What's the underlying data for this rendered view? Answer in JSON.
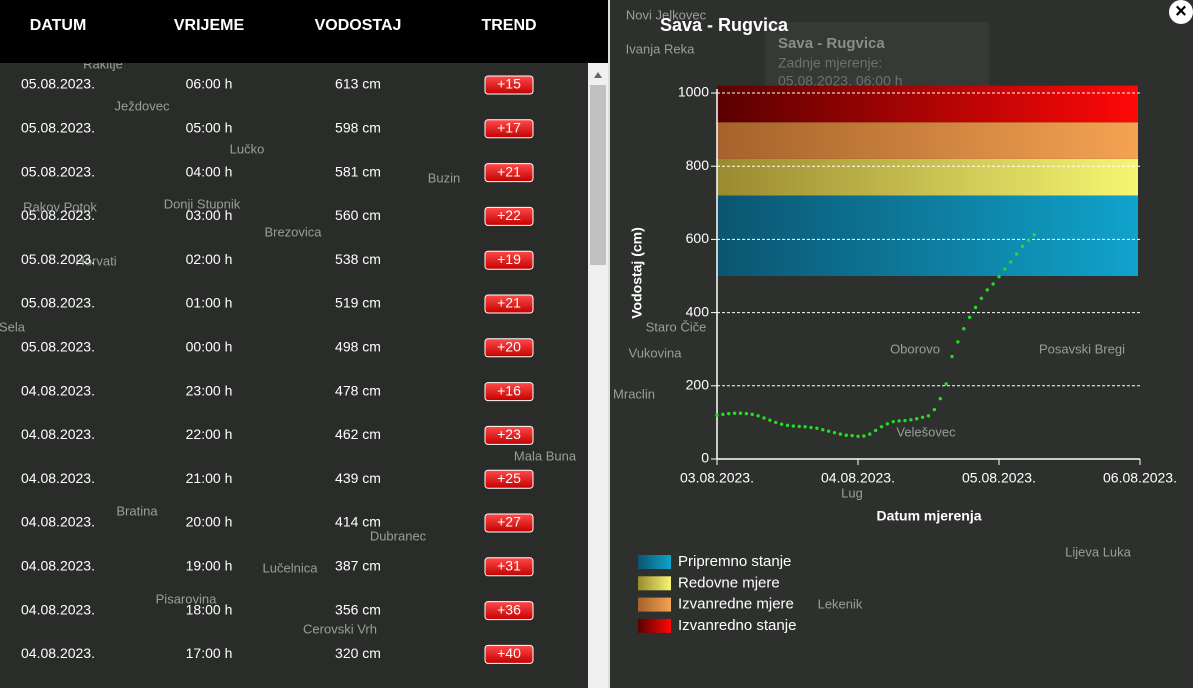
{
  "table": {
    "headers": [
      "DATUM",
      "VRIJEME",
      "VODOSTAJ",
      "TREND"
    ],
    "rows": [
      [
        "05.08.2023.",
        "06:00 h",
        "613 cm",
        "+15"
      ],
      [
        "05.08.2023.",
        "05:00 h",
        "598 cm",
        "+17"
      ],
      [
        "05.08.2023.",
        "04:00 h",
        "581 cm",
        "+21"
      ],
      [
        "05.08.2023.",
        "03:00 h",
        "560 cm",
        "+22"
      ],
      [
        "05.08.2023.",
        "02:00 h",
        "538 cm",
        "+19"
      ],
      [
        "05.08.2023.",
        "01:00 h",
        "519 cm",
        "+21"
      ],
      [
        "05.08.2023.",
        "00:00 h",
        "498 cm",
        "+20"
      ],
      [
        "04.08.2023.",
        "23:00 h",
        "478 cm",
        "+16"
      ],
      [
        "04.08.2023.",
        "22:00 h",
        "462 cm",
        "+23"
      ],
      [
        "04.08.2023.",
        "21:00 h",
        "439 cm",
        "+25"
      ],
      [
        "04.08.2023.",
        "20:00 h",
        "414 cm",
        "+27"
      ],
      [
        "04.08.2023.",
        "19:00 h",
        "387 cm",
        "+31"
      ],
      [
        "04.08.2023.",
        "18:00 h",
        "356 cm",
        "+36"
      ],
      [
        "04.08.2023.",
        "17:00 h",
        "320 cm",
        "+40"
      ]
    ]
  },
  "panel": {
    "title": "Sava - Rugvica",
    "close": "×"
  },
  "popup": {
    "title": "Sava - Rugvica",
    "subtitle": "Zadnje mjerenje:",
    "time": "05.08.2023. 06:00 h"
  },
  "map": {
    "labels": [
      "Rakitje",
      "Ježdovec",
      "Lučko",
      "Rakov Potok",
      "Donji Stupnik",
      "Brezovica",
      "Buzin",
      "Horvati",
      "Sela",
      "Bratina",
      "Lučelnica",
      "Pisarovina",
      "Cerovski Vrh",
      "Dubranec",
      "Mala Buna",
      "Novi Jelkovec",
      "Ivanja Reka",
      "Staro Čiče",
      "Vukovina",
      "Oborovo",
      "Posavski Bregi",
      "Mraclin",
      "Velešovec",
      "Lug",
      "Lijeva Luka",
      "Lekenik"
    ]
  },
  "chart_data": {
    "type": "line",
    "xlabel": "Datum mjerenja",
    "ylabel": "Vodostaj (cm)",
    "xticks": [
      "03.08.2023.",
      "04.08.2023.",
      "05.08.2023.",
      "06.08.2023."
    ],
    "ylim": [
      0,
      1000
    ],
    "yticks": [
      0,
      200,
      400,
      600,
      800,
      1000
    ],
    "grid": true,
    "series": [
      {
        "color": "#22dd22",
        "values": [
          120,
          122,
          124,
          125,
          125,
          124,
          122,
          118,
          112,
          106,
          100,
          95,
          92,
          90,
          89,
          88,
          86,
          84,
          80,
          76,
          72,
          68,
          65,
          64,
          62,
          63,
          68,
          78,
          88,
          96,
          102,
          104,
          105,
          107,
          110,
          114,
          118,
          135,
          165,
          205,
          280,
          320,
          356,
          387,
          414,
          439,
          462,
          478,
          498,
          519,
          538,
          560,
          581,
          598,
          613
        ]
      }
    ],
    "bands": [
      {
        "name": "Pripremno stanje",
        "from": 500,
        "to": 720,
        "colors": [
          "#0b5570",
          "#10a3cc"
        ]
      },
      {
        "name": "Redovne mjere",
        "from": 720,
        "to": 820,
        "colors": [
          "#9a8a30",
          "#f6f672"
        ]
      },
      {
        "name": "Izvanredne mjere",
        "from": 820,
        "to": 920,
        "colors": [
          "#a5622a",
          "#f5a352"
        ]
      },
      {
        "name": "Izvanredno stanje",
        "from": 920,
        "to": 1020,
        "colors": [
          "#5a0000",
          "#ff0808"
        ]
      }
    ]
  }
}
